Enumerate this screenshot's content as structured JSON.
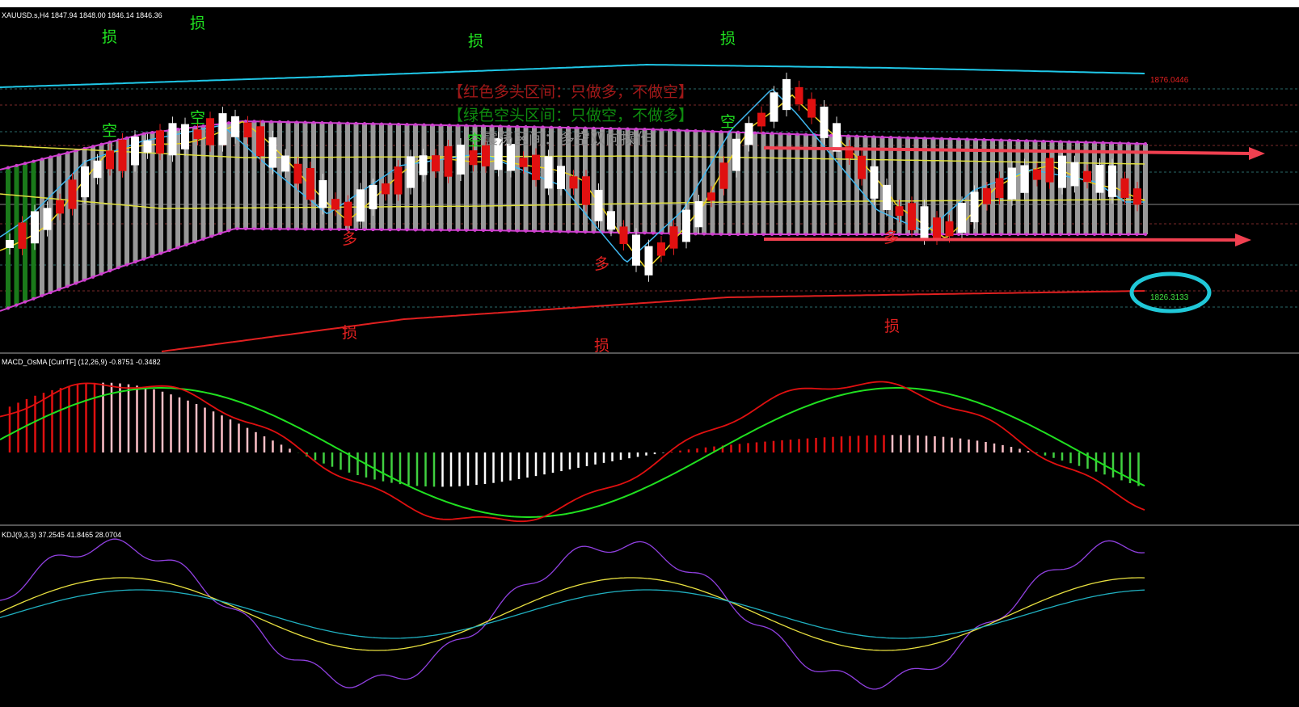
{
  "header": {
    "symbol_info": "XAUUSD.s,H4  1847.94 1848.00 1846.14 1846.36"
  },
  "main": {
    "price_labels": {
      "upper": "1876.0446",
      "lower": "1826.3133"
    },
    "notes": [
      "【红色多头区间：只做多，不做空】",
      "【绿色空头区间：只做空，不做多】",
      "震荡区间：多空双向操作"
    ],
    "green_markers": [
      "损",
      "损",
      "损",
      "损",
      "空",
      "空",
      "空",
      "空"
    ],
    "red_markers": [
      "多",
      "多",
      "多",
      "损",
      "损",
      "损"
    ]
  },
  "macd": {
    "label": "MACD_OsMA [CurrTF] (12,26,9) -0.8751 -0.3482"
  },
  "kdj": {
    "label": "KDJ(9,3,3) 37.2545 41.8465 28.0704"
  }
}
